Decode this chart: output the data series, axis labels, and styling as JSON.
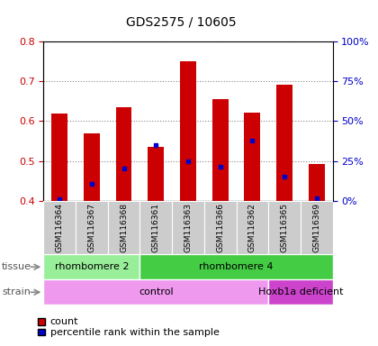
{
  "title": "GDS2575 / 10605",
  "samples": [
    "GSM116364",
    "GSM116367",
    "GSM116368",
    "GSM116361",
    "GSM116363",
    "GSM116366",
    "GSM116362",
    "GSM116365",
    "GSM116369"
  ],
  "count_values": [
    0.62,
    0.57,
    0.635,
    0.535,
    0.75,
    0.655,
    0.622,
    0.692,
    0.493
  ],
  "percentile_values": [
    0.403,
    0.443,
    0.48,
    0.54,
    0.5,
    0.485,
    0.55,
    0.46,
    0.407
  ],
  "ymin": 0.4,
  "ymax": 0.8,
  "yticks": [
    0.4,
    0.5,
    0.6,
    0.7,
    0.8
  ],
  "right_yticks": [
    0,
    25,
    50,
    75,
    100
  ],
  "bar_color": "#cc0000",
  "percentile_color": "#0000cc",
  "bar_bottom": 0.4,
  "tissue_groups": [
    {
      "label": "rhombomere 2",
      "start": 0,
      "end": 3,
      "color": "#99ee99"
    },
    {
      "label": "rhombomere 4",
      "start": 3,
      "end": 9,
      "color": "#44cc44"
    }
  ],
  "strain_groups": [
    {
      "label": "control",
      "start": 0,
      "end": 7,
      "color": "#ee99ee"
    },
    {
      "label": "Hoxb1a deficient",
      "start": 7,
      "end": 9,
      "color": "#cc44cc"
    }
  ],
  "legend_items": [
    {
      "label": "count",
      "color": "#cc0000"
    },
    {
      "label": "percentile rank within the sample",
      "color": "#0000cc"
    }
  ],
  "left_label_color": "#cc0000",
  "right_label_color": "#0000cc",
  "title_color": "#000000",
  "xtick_bg": "#cccccc",
  "row_label_color": "#555555",
  "arrow_color": "#888888"
}
